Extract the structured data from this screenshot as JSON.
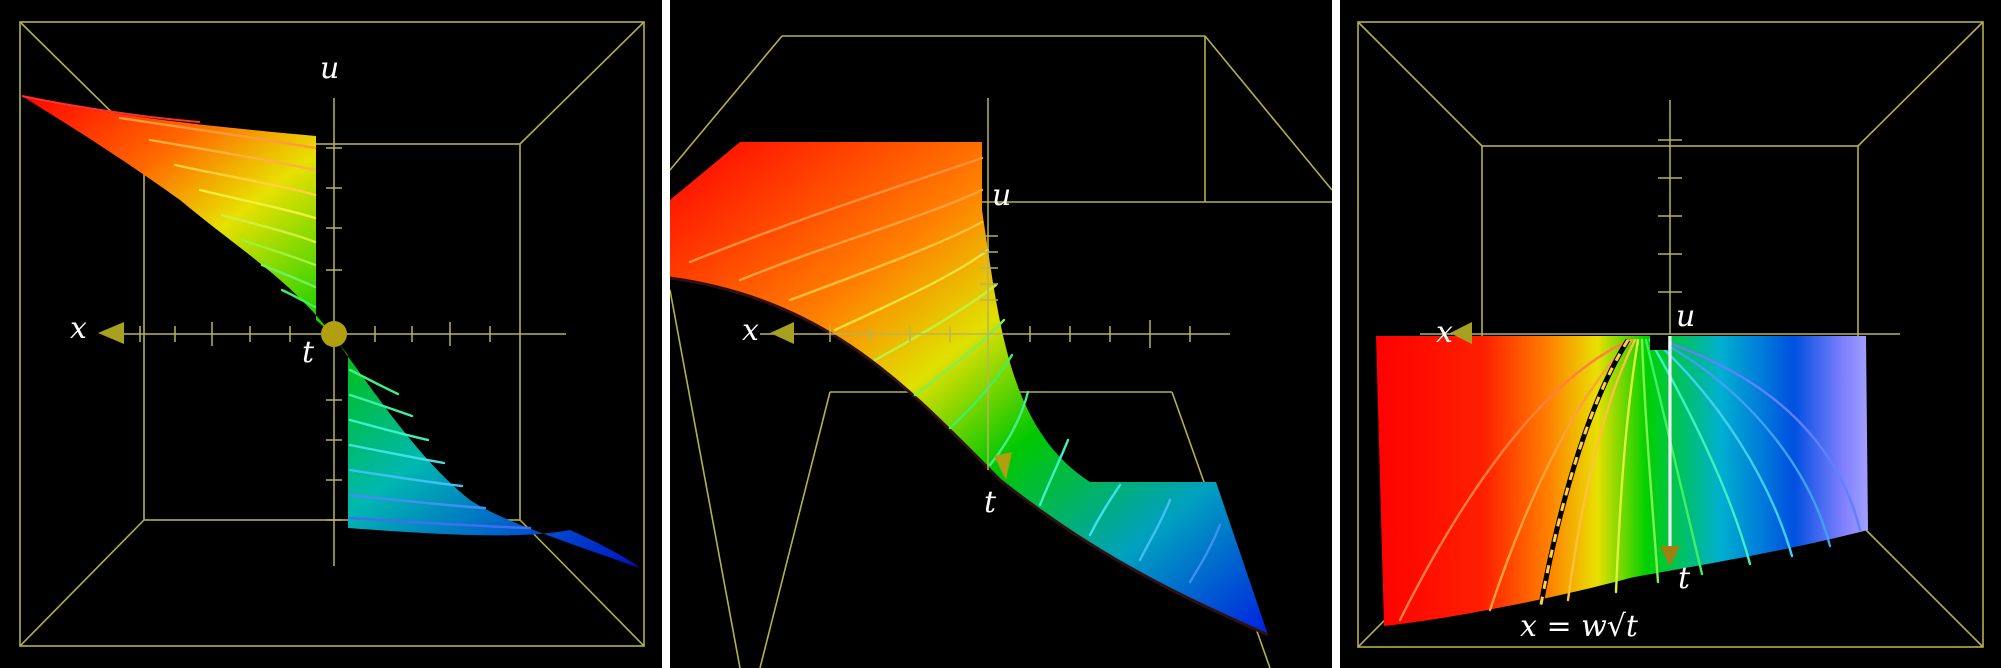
{
  "panels": [
    {
      "axes": {
        "x": "x",
        "u": "u",
        "t": "t"
      }
    },
    {
      "axes": {
        "x": "x",
        "u": "u",
        "t": "t"
      }
    },
    {
      "axes": {
        "x": "x",
        "u": "u",
        "t": "t"
      },
      "curve_label": "x = w√t"
    }
  ],
  "colors": {
    "background": "#000000",
    "frame": "#b5b04a",
    "divider": "#ffffff",
    "marker": "#c8b800"
  }
}
